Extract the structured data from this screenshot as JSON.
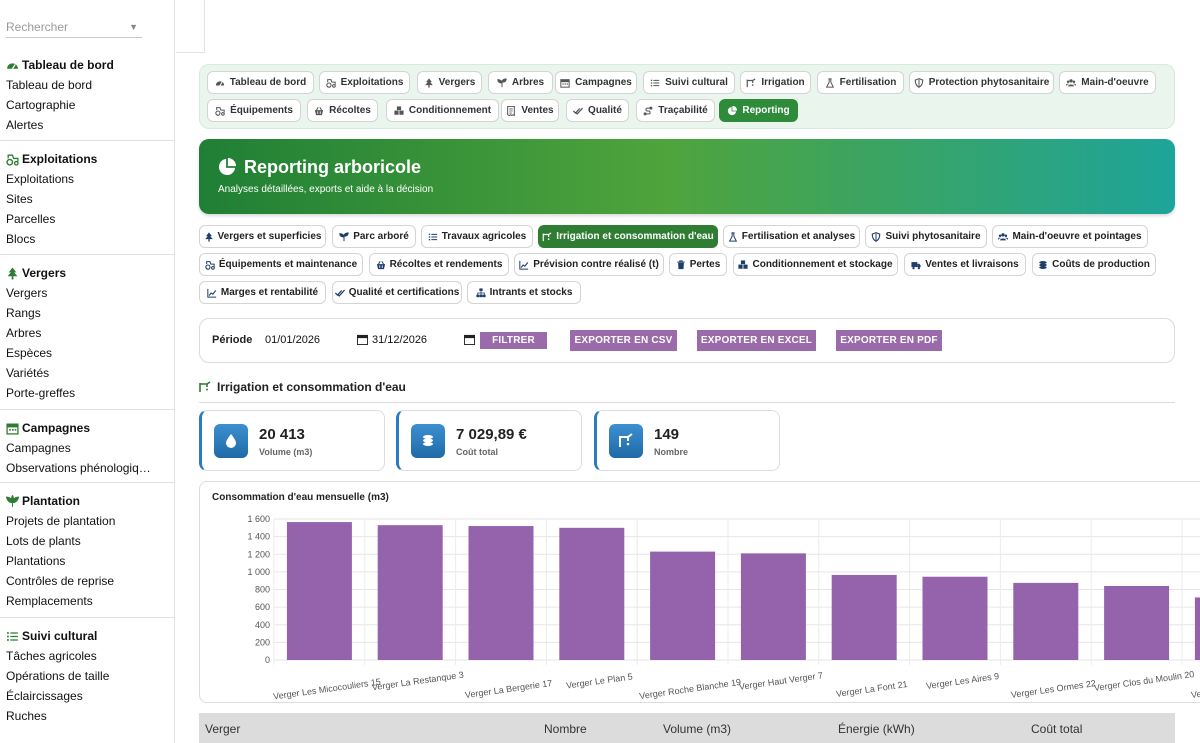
{
  "sidebar": {
    "search_placeholder": "Rechercher",
    "sections": [
      {
        "title": "Tableau de bord",
        "icon": "dashboard-icon",
        "items": [
          "Tableau de bord",
          "Cartographie",
          "Alertes"
        ]
      },
      {
        "title": "Exploitations",
        "icon": "tractor-icon",
        "items": [
          "Exploitations",
          "Sites",
          "Parcelles",
          "Blocs"
        ]
      },
      {
        "title": "Vergers",
        "icon": "tree-icon",
        "items": [
          "Vergers",
          "Rangs",
          "Arbres",
          "Espèces",
          "Variétés",
          "Porte-greffes"
        ]
      },
      {
        "title": "Campagnes",
        "icon": "calendar-icon",
        "items": [
          "Campagnes",
          "Observations phénologiq…"
        ]
      },
      {
        "title": "Plantation",
        "icon": "plant-icon",
        "items": [
          "Projets de plantation",
          "Lots de plants",
          "Plantations",
          "Contrôles de reprise",
          "Remplacements"
        ]
      },
      {
        "title": "Suivi cultural",
        "icon": "list-icon",
        "items": [
          "Tâches agricoles",
          "Opérations de taille",
          "Éclaircissages",
          "Ruches"
        ]
      }
    ]
  },
  "main_nav": {
    "items": [
      {
        "label": "Tableau de bord",
        "icon": "dashboard-icon"
      },
      {
        "label": "Exploitations",
        "icon": "tractor-icon"
      },
      {
        "label": "Vergers",
        "icon": "tree-icon"
      },
      {
        "label": "Arbres",
        "icon": "seedling-icon"
      },
      {
        "label": "Campagnes",
        "icon": "calendar-icon"
      },
      {
        "label": "Suivi cultural",
        "icon": "list-icon"
      },
      {
        "label": "Irrigation",
        "icon": "faucet-icon"
      },
      {
        "label": "Fertilisation",
        "icon": "flask-icon"
      },
      {
        "label": "Protection phytosanitaire",
        "icon": "shield-icon"
      },
      {
        "label": "Main-d'oeuvre",
        "icon": "users-icon"
      },
      {
        "label": "Équipements",
        "icon": "tractor-icon"
      },
      {
        "label": "Récoltes",
        "icon": "basket-icon"
      },
      {
        "label": "Conditionnement",
        "icon": "boxes-icon"
      },
      {
        "label": "Ventes",
        "icon": "receipt-icon"
      },
      {
        "label": "Qualité",
        "icon": "check-double-icon"
      },
      {
        "label": "Traçabilité",
        "icon": "route-icon"
      },
      {
        "label": "Reporting",
        "icon": "pie-chart-icon",
        "active": true
      }
    ]
  },
  "banner": {
    "title": "Reporting arboricole",
    "subtitle": "Analyses détaillées, exports et aide à la décision"
  },
  "report_tabs": [
    {
      "label": "Vergers et superficies",
      "icon": "tree-icon"
    },
    {
      "label": "Parc arboré",
      "icon": "seedling-icon"
    },
    {
      "label": "Travaux agricoles",
      "icon": "list-icon"
    },
    {
      "label": "Irrigation et consommation d'eau",
      "icon": "faucet-icon",
      "active": true
    },
    {
      "label": "Fertilisation et analyses",
      "icon": "flask-icon"
    },
    {
      "label": "Suivi phytosanitaire",
      "icon": "shield-icon"
    },
    {
      "label": "Main-d'oeuvre et pointages",
      "icon": "users-icon"
    },
    {
      "label": "Équipements et maintenance",
      "icon": "tractor-icon"
    },
    {
      "label": "Récoltes et rendements",
      "icon": "basket-icon"
    },
    {
      "label": "Prévision contre réalisé (t)",
      "icon": "line-chart-icon"
    },
    {
      "label": "Pertes",
      "icon": "trash-icon"
    },
    {
      "label": "Conditionnement et stockage",
      "icon": "boxes-icon"
    },
    {
      "label": "Ventes et livraisons",
      "icon": "truck-icon"
    },
    {
      "label": "Coûts de production",
      "icon": "coins-icon"
    },
    {
      "label": "Marges et rentabilité",
      "icon": "line-chart-icon"
    },
    {
      "label": "Qualité et certifications",
      "icon": "check-double-icon"
    },
    {
      "label": "Intrants et stocks",
      "icon": "sitemap-icon"
    }
  ],
  "filter": {
    "period_label": "Période",
    "date_from": "01/01/2026",
    "date_to": "31/12/2026",
    "filter_button": "FILTRER",
    "export_csv": "EXPORTER EN CSV",
    "export_excel": "EXPORTER EN EXCEL",
    "export_pdf": "EXPORTER EN PDF"
  },
  "section": {
    "title": "Irrigation et consommation d'eau",
    "icon": "faucet-icon"
  },
  "kpis": [
    {
      "value": "20 413",
      "label": "Volume (m3)",
      "icon": "water-drop-icon"
    },
    {
      "value": "7 029,89 €",
      "label": "Coût total",
      "icon": "coins-icon"
    },
    {
      "value": "149",
      "label": "Nombre",
      "icon": "faucet-icon"
    }
  ],
  "colors": {
    "accent_green": "#2e7d32",
    "bar_purple": "#9463ab",
    "kpi_blue": "#2b7bbd",
    "export_purple": "#9b6aaa"
  },
  "chart_data": {
    "type": "bar",
    "title": "Consommation d'eau mensuelle (m3)",
    "categories": [
      "Verger Les Micocouliers 15",
      "Verger La Restanque 3",
      "Verger La Bergerie 17",
      "Verger Le Plan 5",
      "Verger Roche Blanche 19",
      "Verger Haut Verger 7",
      "Verger La Font 21",
      "Verger Les Aires 9",
      "Verger Les Ormes 22",
      "Verger Clos du Moulin 20",
      "Verger Les Amandiers"
    ],
    "values": [
      1565,
      1530,
      1520,
      1500,
      1230,
      1210,
      965,
      945,
      875,
      840,
      710
    ],
    "ylim": [
      0,
      1600
    ],
    "yticks": [
      "0",
      "200",
      "400",
      "600",
      "800",
      "1 000",
      "1 200",
      "1 400",
      "1 600"
    ],
    "grid": true
  },
  "table": {
    "headers": [
      "Verger",
      "Nombre",
      "Volume (m3)",
      "Énergie (kWh)",
      "Coût total"
    ]
  }
}
